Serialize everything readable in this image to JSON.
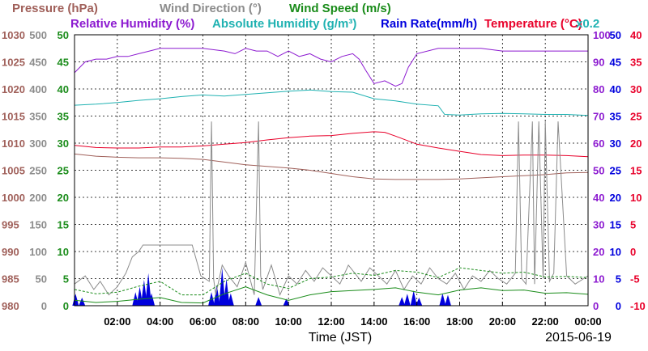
{
  "chart_data": {
    "type": "line",
    "xlabel": "Time (JST)",
    "date": "2015-06-19",
    "grid": true,
    "x_ticks": [
      "02:00",
      "04:00",
      "06:00",
      "08:00",
      "10:00",
      "12:00",
      "14:00",
      "16:00",
      "18:00",
      "20:00",
      "22:00",
      "00:00"
    ],
    "x_range_hours": [
      0,
      24
    ],
    "legend": [
      {
        "text": "Pressure (hPa)",
        "color": "#a0605a"
      },
      {
        "text": "Wind Direction (°)",
        "color": "#8c8c8c"
      },
      {
        "text": "Wind Speed (m/s)",
        "color": "#1a8c1a"
      },
      {
        "text": "Relative Humidity (%)",
        "color": "#8c1ad0"
      },
      {
        "text": "Absolute Humidity (g/m³)",
        "color": "#20b2b2"
      },
      {
        "text": "Rain Rate(mm/h)",
        "color": "#0000dd"
      },
      {
        "text": "Temperature (°C)",
        "color": "#e8002a"
      },
      {
        "text": "x0.2",
        "color": "#20b2b2"
      }
    ],
    "axes": {
      "pressure": {
        "color": "#a0605a",
        "range": [
          980,
          1030
        ],
        "ticks": [
          "1030",
          "1025",
          "1020",
          "1015",
          "1010",
          "1005",
          "1000",
          "995",
          "990",
          "985",
          "980"
        ]
      },
      "wind_direction": {
        "color": "#8c8c8c",
        "range": [
          0,
          500
        ],
        "ticks": [
          "500",
          "450",
          "400",
          "350",
          "300",
          "250",
          "200",
          "150",
          "100",
          "50",
          "0"
        ]
      },
      "wind_speed": {
        "color": "#1a8c1a",
        "range": [
          0,
          50
        ],
        "ticks": [
          "50",
          "45",
          "40",
          "35",
          "30",
          "25",
          "20",
          "15",
          "10",
          "5",
          "0"
        ]
      },
      "humidity": {
        "color": "#8c1ad0",
        "range": [
          0,
          100
        ],
        "ticks": [
          "100",
          "90",
          "80",
          "70",
          "60",
          "50",
          "40",
          "30",
          "20",
          "10",
          "0"
        ]
      },
      "rain_rate": {
        "color": "#0000dd",
        "range": [
          0,
          50
        ],
        "ticks": [
          "50",
          "45",
          "40",
          "35",
          "30",
          "25",
          "20",
          "15",
          "10",
          "5",
          "0"
        ]
      },
      "temperature": {
        "color": "#e8002a",
        "range": [
          -10,
          40
        ],
        "ticks": [
          "40",
          "35",
          "30",
          "25",
          "20",
          "15",
          "10",
          "5",
          "0",
          "-5",
          "-10"
        ]
      }
    },
    "series": [
      {
        "name": "Relative Humidity (%)",
        "axis": "humidity",
        "color": "#8c1ad0",
        "x": [
          0,
          0.5,
          1,
          1.5,
          2,
          2.5,
          3,
          3.5,
          4,
          5,
          6,
          7,
          7.5,
          8,
          8.5,
          9,
          9.5,
          10,
          10.5,
          11,
          11.5,
          12,
          12.5,
          13,
          13.3,
          13.6,
          14,
          14.5,
          15,
          15.3,
          15.6,
          16,
          17,
          18,
          19,
          20,
          21,
          22,
          23,
          24
        ],
        "values": [
          86,
          90,
          91,
          91,
          92,
          92,
          93,
          94,
          95,
          95,
          95,
          94,
          93,
          95,
          94,
          94,
          92,
          94,
          92,
          93,
          91,
          90,
          92,
          93,
          91,
          87,
          82,
          83,
          81,
          82,
          88,
          93,
          95,
          95,
          95,
          94,
          94,
          94,
          94,
          94
        ]
      },
      {
        "name": "Absolute Humidity (g/m³)",
        "axis": "wind_speed",
        "color": "#20b2b2",
        "x": [
          0,
          1,
          2,
          3,
          4,
          5,
          6,
          7,
          8,
          9,
          10,
          11,
          12,
          13,
          14,
          15,
          16,
          17,
          17.3,
          18,
          19,
          20,
          21,
          22,
          23,
          24
        ],
        "values": [
          37.0,
          37.2,
          37.5,
          37.9,
          38.2,
          38.6,
          38.9,
          38.7,
          39.0,
          39.3,
          39.6,
          39.8,
          39.5,
          39.4,
          38.2,
          37.8,
          37.2,
          36.9,
          35.3,
          35.2,
          35.4,
          35.5,
          35.4,
          35.3,
          35.3,
          35.1
        ]
      },
      {
        "name": "Temperature (°C)",
        "axis": "temperature",
        "color": "#e8002a",
        "x": [
          0,
          1,
          2,
          3,
          4,
          5,
          6,
          7,
          8,
          9,
          10,
          11,
          12,
          13,
          14,
          14.5,
          15,
          16,
          17,
          18,
          19,
          20,
          21,
          22,
          23,
          24
        ],
        "values": [
          19.6,
          19.2,
          19.1,
          19.1,
          19.3,
          19.3,
          19.5,
          19.8,
          20.1,
          20.6,
          21.0,
          21.3,
          21.4,
          21.8,
          22.1,
          22.0,
          21.3,
          19.8,
          19.1,
          18.5,
          17.9,
          17.7,
          17.8,
          17.8,
          17.7,
          17.5
        ]
      },
      {
        "name": "Pressure (hPa)",
        "axis": "pressure",
        "color": "#a0605a",
        "x": [
          0,
          1,
          2,
          3,
          4,
          5,
          6,
          7,
          8,
          9,
          10,
          11,
          12,
          13,
          14,
          15,
          16,
          17,
          18,
          19,
          20,
          21,
          22,
          23,
          24
        ],
        "values": [
          1008.0,
          1007.6,
          1007.4,
          1007.3,
          1007.3,
          1007.2,
          1007.0,
          1006.5,
          1006.0,
          1005.7,
          1005.4,
          1005.0,
          1004.4,
          1003.8,
          1003.4,
          1003.3,
          1003.3,
          1003.3,
          1003.4,
          1003.6,
          1003.8,
          1004.0,
          1004.2,
          1004.5,
          1004.6
        ]
      },
      {
        "name": "Wind Direction (°)",
        "axis": "wind_direction",
        "color": "#8c8c8c",
        "x": [
          0,
          0.5,
          0.9,
          1.2,
          1.6,
          2.0,
          2.4,
          2.7,
          3.0,
          3.2,
          3.4,
          3.6,
          3.8,
          4.0,
          5.5,
          5.9,
          6.3,
          6.4,
          6.5,
          6.6,
          6.9,
          7.2,
          7.6,
          8.0,
          8.4,
          8.6,
          8.7,
          8.8,
          9.2,
          9.6,
          10.0,
          10.4,
          10.8,
          11.2,
          11.6,
          12.0,
          12.4,
          12.8,
          13.1,
          13.4,
          13.8,
          14.2,
          14.6,
          15.0,
          15.4,
          15.8,
          16.2,
          16.6,
          17.0,
          17.4,
          17.8,
          18.2,
          18.6,
          19.0,
          19.4,
          19.8,
          20.2,
          20.6,
          20.75,
          20.9,
          21.1,
          21.4,
          21.5,
          21.7,
          21.9,
          22.0,
          22.2,
          22.4,
          22.6,
          23.0,
          23.4,
          23.8,
          24
        ],
        "values": [
          40,
          55,
          30,
          45,
          20,
          35,
          60,
          90,
          100,
          112,
          112,
          112,
          112,
          112,
          112,
          55,
          45,
          340,
          50,
          20,
          75,
          55,
          35,
          80,
          20,
          340,
          55,
          30,
          75,
          20,
          55,
          40,
          65,
          45,
          70,
          55,
          40,
          75,
          60,
          45,
          70,
          55,
          40,
          65,
          30,
          55,
          40,
          70,
          50,
          40,
          60,
          30,
          55,
          45,
          65,
          50,
          40,
          60,
          340,
          50,
          40,
          340,
          40,
          340,
          50,
          340,
          45,
          60,
          340,
          55,
          40,
          50,
          55
        ]
      },
      {
        "name": "Wind Speed (m/s)",
        "axis": "wind_speed",
        "color": "#1a8c1a",
        "x": [
          0,
          1,
          2,
          3,
          4,
          5,
          6,
          7,
          8,
          9,
          10,
          11,
          12,
          13,
          14,
          15,
          16,
          17,
          18,
          19,
          20,
          21,
          22,
          23,
          24
        ],
        "values": [
          1.0,
          0.6,
          0.8,
          1.2,
          1.5,
          0.6,
          0.5,
          2.2,
          3.5,
          2.0,
          1.0,
          2.0,
          2.6,
          2.8,
          3.0,
          3.3,
          2.5,
          2.0,
          2.9,
          3.3,
          2.8,
          2.9,
          2.3,
          2.4,
          2.1
        ]
      },
      {
        "name": "Wind Speed (m/s) gust",
        "axis": "wind_speed",
        "color": "#1a8c1a",
        "dashed": true,
        "x": [
          0,
          1,
          2,
          3,
          4,
          5,
          6,
          7,
          8,
          9,
          10,
          11,
          12,
          13,
          14,
          15,
          16,
          17,
          18,
          19,
          20,
          21,
          22,
          23,
          24
        ],
        "values": [
          3.0,
          2.2,
          2.5,
          3.6,
          4.5,
          2.0,
          2.0,
          4.5,
          6.0,
          4.0,
          3.2,
          5.0,
          5.3,
          6.0,
          5.6,
          6.5,
          6.2,
          5.2,
          7.0,
          6.5,
          6.0,
          6.2,
          5.3,
          5.4,
          5.2
        ]
      }
    ],
    "rain_rate": {
      "axis": "rain_rate",
      "color": "#0000dd",
      "events": [
        {
          "x": 0.05,
          "value": 2.2
        },
        {
          "x": 0.35,
          "value": 1.5
        },
        {
          "x": 2.85,
          "value": 2.5
        },
        {
          "x": 3.05,
          "value": 3.5
        },
        {
          "x": 3.25,
          "value": 4.8
        },
        {
          "x": 3.45,
          "value": 6.0
        },
        {
          "x": 3.6,
          "value": 2.3
        },
        {
          "x": 6.4,
          "value": 2.5
        },
        {
          "x": 6.65,
          "value": 3.8
        },
        {
          "x": 6.9,
          "value": 7.0
        },
        {
          "x": 7.1,
          "value": 5.0
        },
        {
          "x": 7.3,
          "value": 2.3
        },
        {
          "x": 8.6,
          "value": 1.6
        },
        {
          "x": 9.9,
          "value": 1.3
        },
        {
          "x": 15.3,
          "value": 1.6
        },
        {
          "x": 15.55,
          "value": 2.2
        },
        {
          "x": 15.85,
          "value": 2.8
        },
        {
          "x": 16.1,
          "value": 1.5
        },
        {
          "x": 17.2,
          "value": 2.3
        },
        {
          "x": 17.45,
          "value": 2.0
        }
      ]
    }
  }
}
